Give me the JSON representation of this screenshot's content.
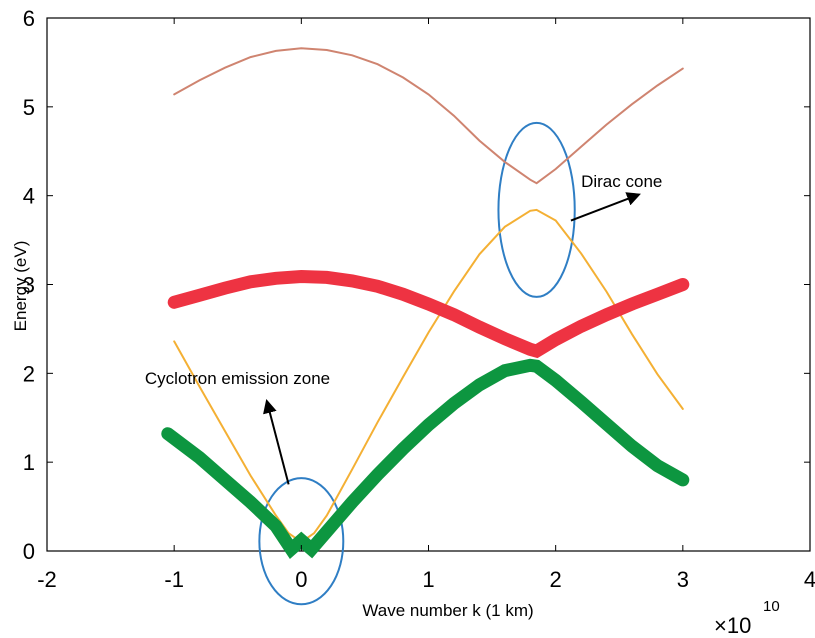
{
  "chart_data": {
    "type": "line",
    "title": "",
    "xlabel": "Wave number k (1 km)",
    "ylabel": "Energy (eV)",
    "x_multiplier_base": "×10",
    "x_multiplier_exp": "10",
    "xlim": [
      -2,
      4
    ],
    "ylim": [
      0,
      6
    ],
    "xticks": [
      "-2",
      "-1",
      "0",
      "1",
      "2",
      "3",
      "4"
    ],
    "yticks": [
      "0",
      "1",
      "2",
      "3",
      "4",
      "5",
      "6"
    ],
    "grid": false,
    "series": [
      {
        "color": "#cf8470",
        "x": [
          -1.0,
          -0.8,
          -0.6,
          -0.4,
          -0.2,
          0.0,
          0.2,
          0.4,
          0.6,
          0.8,
          1.0,
          1.2,
          1.4,
          1.6,
          1.8,
          1.85,
          2.0,
          2.2,
          2.4,
          2.6,
          2.8,
          3.0
        ],
        "y": [
          5.14,
          5.3,
          5.44,
          5.56,
          5.63,
          5.66,
          5.64,
          5.58,
          5.48,
          5.33,
          5.14,
          4.9,
          4.62,
          4.38,
          4.18,
          4.14,
          4.3,
          4.55,
          4.8,
          5.03,
          5.24,
          5.43
        ]
      },
      {
        "color": "#f4b034",
        "x": [
          -1.0,
          -0.8,
          -0.6,
          -0.4,
          -0.2,
          -0.1,
          0.0,
          0.1,
          0.2,
          0.4,
          0.6,
          0.8,
          1.0,
          1.2,
          1.4,
          1.6,
          1.8,
          1.85,
          2.0,
          2.2,
          2.4,
          2.6,
          2.8,
          3.0
        ],
        "y": [
          2.36,
          1.85,
          1.35,
          0.85,
          0.4,
          0.2,
          0.1,
          0.2,
          0.4,
          0.92,
          1.45,
          1.96,
          2.46,
          2.92,
          3.34,
          3.65,
          3.83,
          3.84,
          3.72,
          3.35,
          2.92,
          2.44,
          1.99,
          1.6
        ]
      },
      {
        "color": "#ee3342",
        "x": [
          -1.0,
          -0.8,
          -0.6,
          -0.4,
          -0.2,
          0.0,
          0.2,
          0.4,
          0.6,
          0.8,
          1.0,
          1.2,
          1.4,
          1.6,
          1.8,
          1.85,
          2.0,
          2.2,
          2.4,
          2.6,
          2.8,
          3.0
        ],
        "y": [
          2.8,
          2.88,
          2.96,
          3.03,
          3.07,
          3.09,
          3.08,
          3.04,
          2.98,
          2.89,
          2.78,
          2.66,
          2.52,
          2.39,
          2.27,
          2.25,
          2.38,
          2.53,
          2.66,
          2.78,
          2.89,
          3.0
        ]
      },
      {
        "color": "#0d9640",
        "x": [
          -1.05,
          -0.8,
          -0.6,
          -0.4,
          -0.2,
          -0.08,
          0.0,
          0.08,
          0.2,
          0.4,
          0.6,
          0.8,
          1.0,
          1.2,
          1.4,
          1.6,
          1.8,
          1.85,
          2.0,
          2.2,
          2.4,
          2.6,
          2.8,
          3.0
        ],
        "y": [
          1.32,
          1.05,
          0.8,
          0.55,
          0.28,
          0.02,
          0.12,
          0.02,
          0.22,
          0.55,
          0.86,
          1.15,
          1.42,
          1.66,
          1.87,
          2.03,
          2.09,
          2.08,
          1.92,
          1.68,
          1.43,
          1.18,
          0.96,
          0.8
        ]
      }
    ],
    "annotations": [
      {
        "text": "Dirac cone",
        "x": 2.2,
        "y": 4.1
      },
      {
        "text": "Cyclotron emission zone",
        "x": -1.23,
        "y": 1.88
      }
    ],
    "highlight_ellipses": [
      {
        "label": "Dirac cone",
        "cx": 1.85,
        "cy": 3.84,
        "rx": 0.3,
        "ry": 0.98
      },
      {
        "label": "Cyclotron emission zone",
        "cx": 0.0,
        "cy": 0.11,
        "rx": 0.33,
        "ry": 0.71
      }
    ],
    "arrows": [
      {
        "label": "Dirac cone",
        "from": [
          2.12,
          3.72
        ],
        "to": [
          2.65,
          4.01
        ]
      },
      {
        "label": "Cyclotron emission zone",
        "from": [
          -0.1,
          0.75
        ],
        "to": [
          -0.27,
          1.68
        ]
      }
    ]
  }
}
